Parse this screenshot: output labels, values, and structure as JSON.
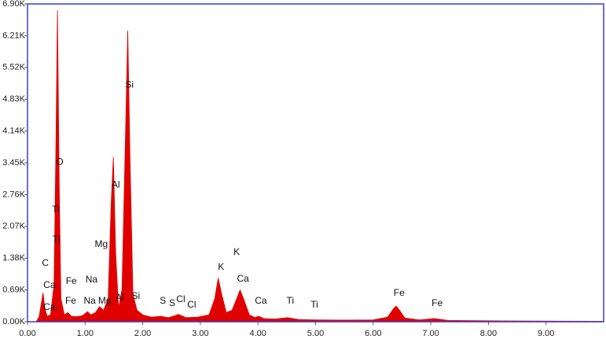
{
  "chart_data": {
    "type": "area",
    "color": "#e00000",
    "border_color": "#3b3bd6",
    "x": [
      0.15,
      0.2,
      0.24,
      0.27,
      0.3,
      0.34,
      0.4,
      0.46,
      0.49,
      0.52,
      0.55,
      0.58,
      0.64,
      0.7,
      0.76,
      0.85,
      0.95,
      1.04,
      1.1,
      1.18,
      1.25,
      1.32,
      1.4,
      1.45,
      1.49,
      1.53,
      1.58,
      1.64,
      1.7,
      1.74,
      1.78,
      1.83,
      1.9,
      2.0,
      2.15,
      2.31,
      2.45,
      2.62,
      2.75,
      2.95,
      3.15,
      3.25,
      3.31,
      3.37,
      3.45,
      3.55,
      3.63,
      3.69,
      3.75,
      3.85,
      3.95,
      4.01,
      4.1,
      4.3,
      4.51,
      4.7,
      5.0,
      5.5,
      6.0,
      6.25,
      6.35,
      6.4,
      6.45,
      6.55,
      6.8,
      7.06,
      7.3,
      8.0,
      9.0,
      10.0
    ],
    "values": [
      0,
      100,
      400,
      630,
      300,
      120,
      150,
      800,
      3500,
      6760,
      3000,
      500,
      150,
      200,
      120,
      110,
      130,
      220,
      150,
      200,
      330,
      250,
      500,
      2500,
      3580,
      1500,
      300,
      700,
      4000,
      6320,
      3500,
      600,
      250,
      150,
      100,
      120,
      90,
      160,
      90,
      100,
      150,
      500,
      950,
      600,
      200,
      250,
      500,
      690,
      500,
      150,
      90,
      120,
      70,
      60,
      90,
      50,
      40,
      35,
      40,
      100,
      280,
      340,
      260,
      80,
      40,
      70,
      30,
      20,
      15,
      10
    ],
    "xlim": [
      0,
      10
    ],
    "ylim": [
      0,
      6900
    ],
    "xticks": [
      {
        "value": 0,
        "label": "0.00"
      },
      {
        "value": 1,
        "label": "1.00"
      },
      {
        "value": 2,
        "label": "2.00"
      },
      {
        "value": 3,
        "label": "3.00"
      },
      {
        "value": 4,
        "label": "4.00"
      },
      {
        "value": 5,
        "label": "5.00"
      },
      {
        "value": 6,
        "label": "6.00"
      },
      {
        "value": 7,
        "label": "7.00"
      },
      {
        "value": 8,
        "label": "8.00"
      },
      {
        "value": 9,
        "label": "9.00"
      }
    ],
    "yticks": [
      {
        "value": 0,
        "label": "0.00K"
      },
      {
        "value": 690,
        "label": "0.69K"
      },
      {
        "value": 1380,
        "label": "1.38K"
      },
      {
        "value": 2070,
        "label": "2.07K"
      },
      {
        "value": 2760,
        "label": "2.76K"
      },
      {
        "value": 3450,
        "label": "3.45K"
      },
      {
        "value": 4140,
        "label": "4.14K"
      },
      {
        "value": 4830,
        "label": "4.83K"
      },
      {
        "value": 5520,
        "label": "5.52K"
      },
      {
        "value": 6210,
        "label": "6.21K"
      },
      {
        "value": 6900,
        "label": "6.90K"
      }
    ],
    "annotations": [
      {
        "text": "C",
        "x": 0.31,
        "y": 1267
      },
      {
        "text": "Ca",
        "x": 0.38,
        "y": 787
      },
      {
        "text": "Ca",
        "x": 0.38,
        "y": 308
      },
      {
        "text": "O",
        "x": 0.56,
        "y": 3459
      },
      {
        "text": "Ti",
        "x": 0.49,
        "y": 2432
      },
      {
        "text": "Ti",
        "x": 0.5,
        "y": 1781
      },
      {
        "text": "Fe",
        "x": 0.76,
        "y": 873
      },
      {
        "text": "Fe",
        "x": 0.75,
        "y": 445
      },
      {
        "text": "Na",
        "x": 1.11,
        "y": 907
      },
      {
        "text": "Na",
        "x": 1.08,
        "y": 445
      },
      {
        "text": "Mg",
        "x": 1.28,
        "y": 1678
      },
      {
        "text": "Mg",
        "x": 1.34,
        "y": 445
      },
      {
        "text": "Al",
        "x": 1.53,
        "y": 2962
      },
      {
        "text": "Al",
        "x": 1.6,
        "y": 514
      },
      {
        "text": "Si",
        "x": 1.77,
        "y": 5137
      },
      {
        "text": "Si",
        "x": 1.88,
        "y": 548
      },
      {
        "text": "S",
        "x": 2.35,
        "y": 445
      },
      {
        "text": "S",
        "x": 2.51,
        "y": 394
      },
      {
        "text": "Cl",
        "x": 2.66,
        "y": 479
      },
      {
        "text": "Cl",
        "x": 2.85,
        "y": 359
      },
      {
        "text": "K",
        "x": 3.36,
        "y": 1182
      },
      {
        "text": "K",
        "x": 3.63,
        "y": 1507
      },
      {
        "text": "Ca",
        "x": 3.74,
        "y": 925
      },
      {
        "text": "Ca",
        "x": 4.05,
        "y": 445
      },
      {
        "text": "Ti",
        "x": 4.56,
        "y": 445
      },
      {
        "text": "Ti",
        "x": 4.98,
        "y": 359
      },
      {
        "text": "Fe",
        "x": 6.45,
        "y": 616
      },
      {
        "text": "Fe",
        "x": 7.11,
        "y": 394
      }
    ]
  }
}
